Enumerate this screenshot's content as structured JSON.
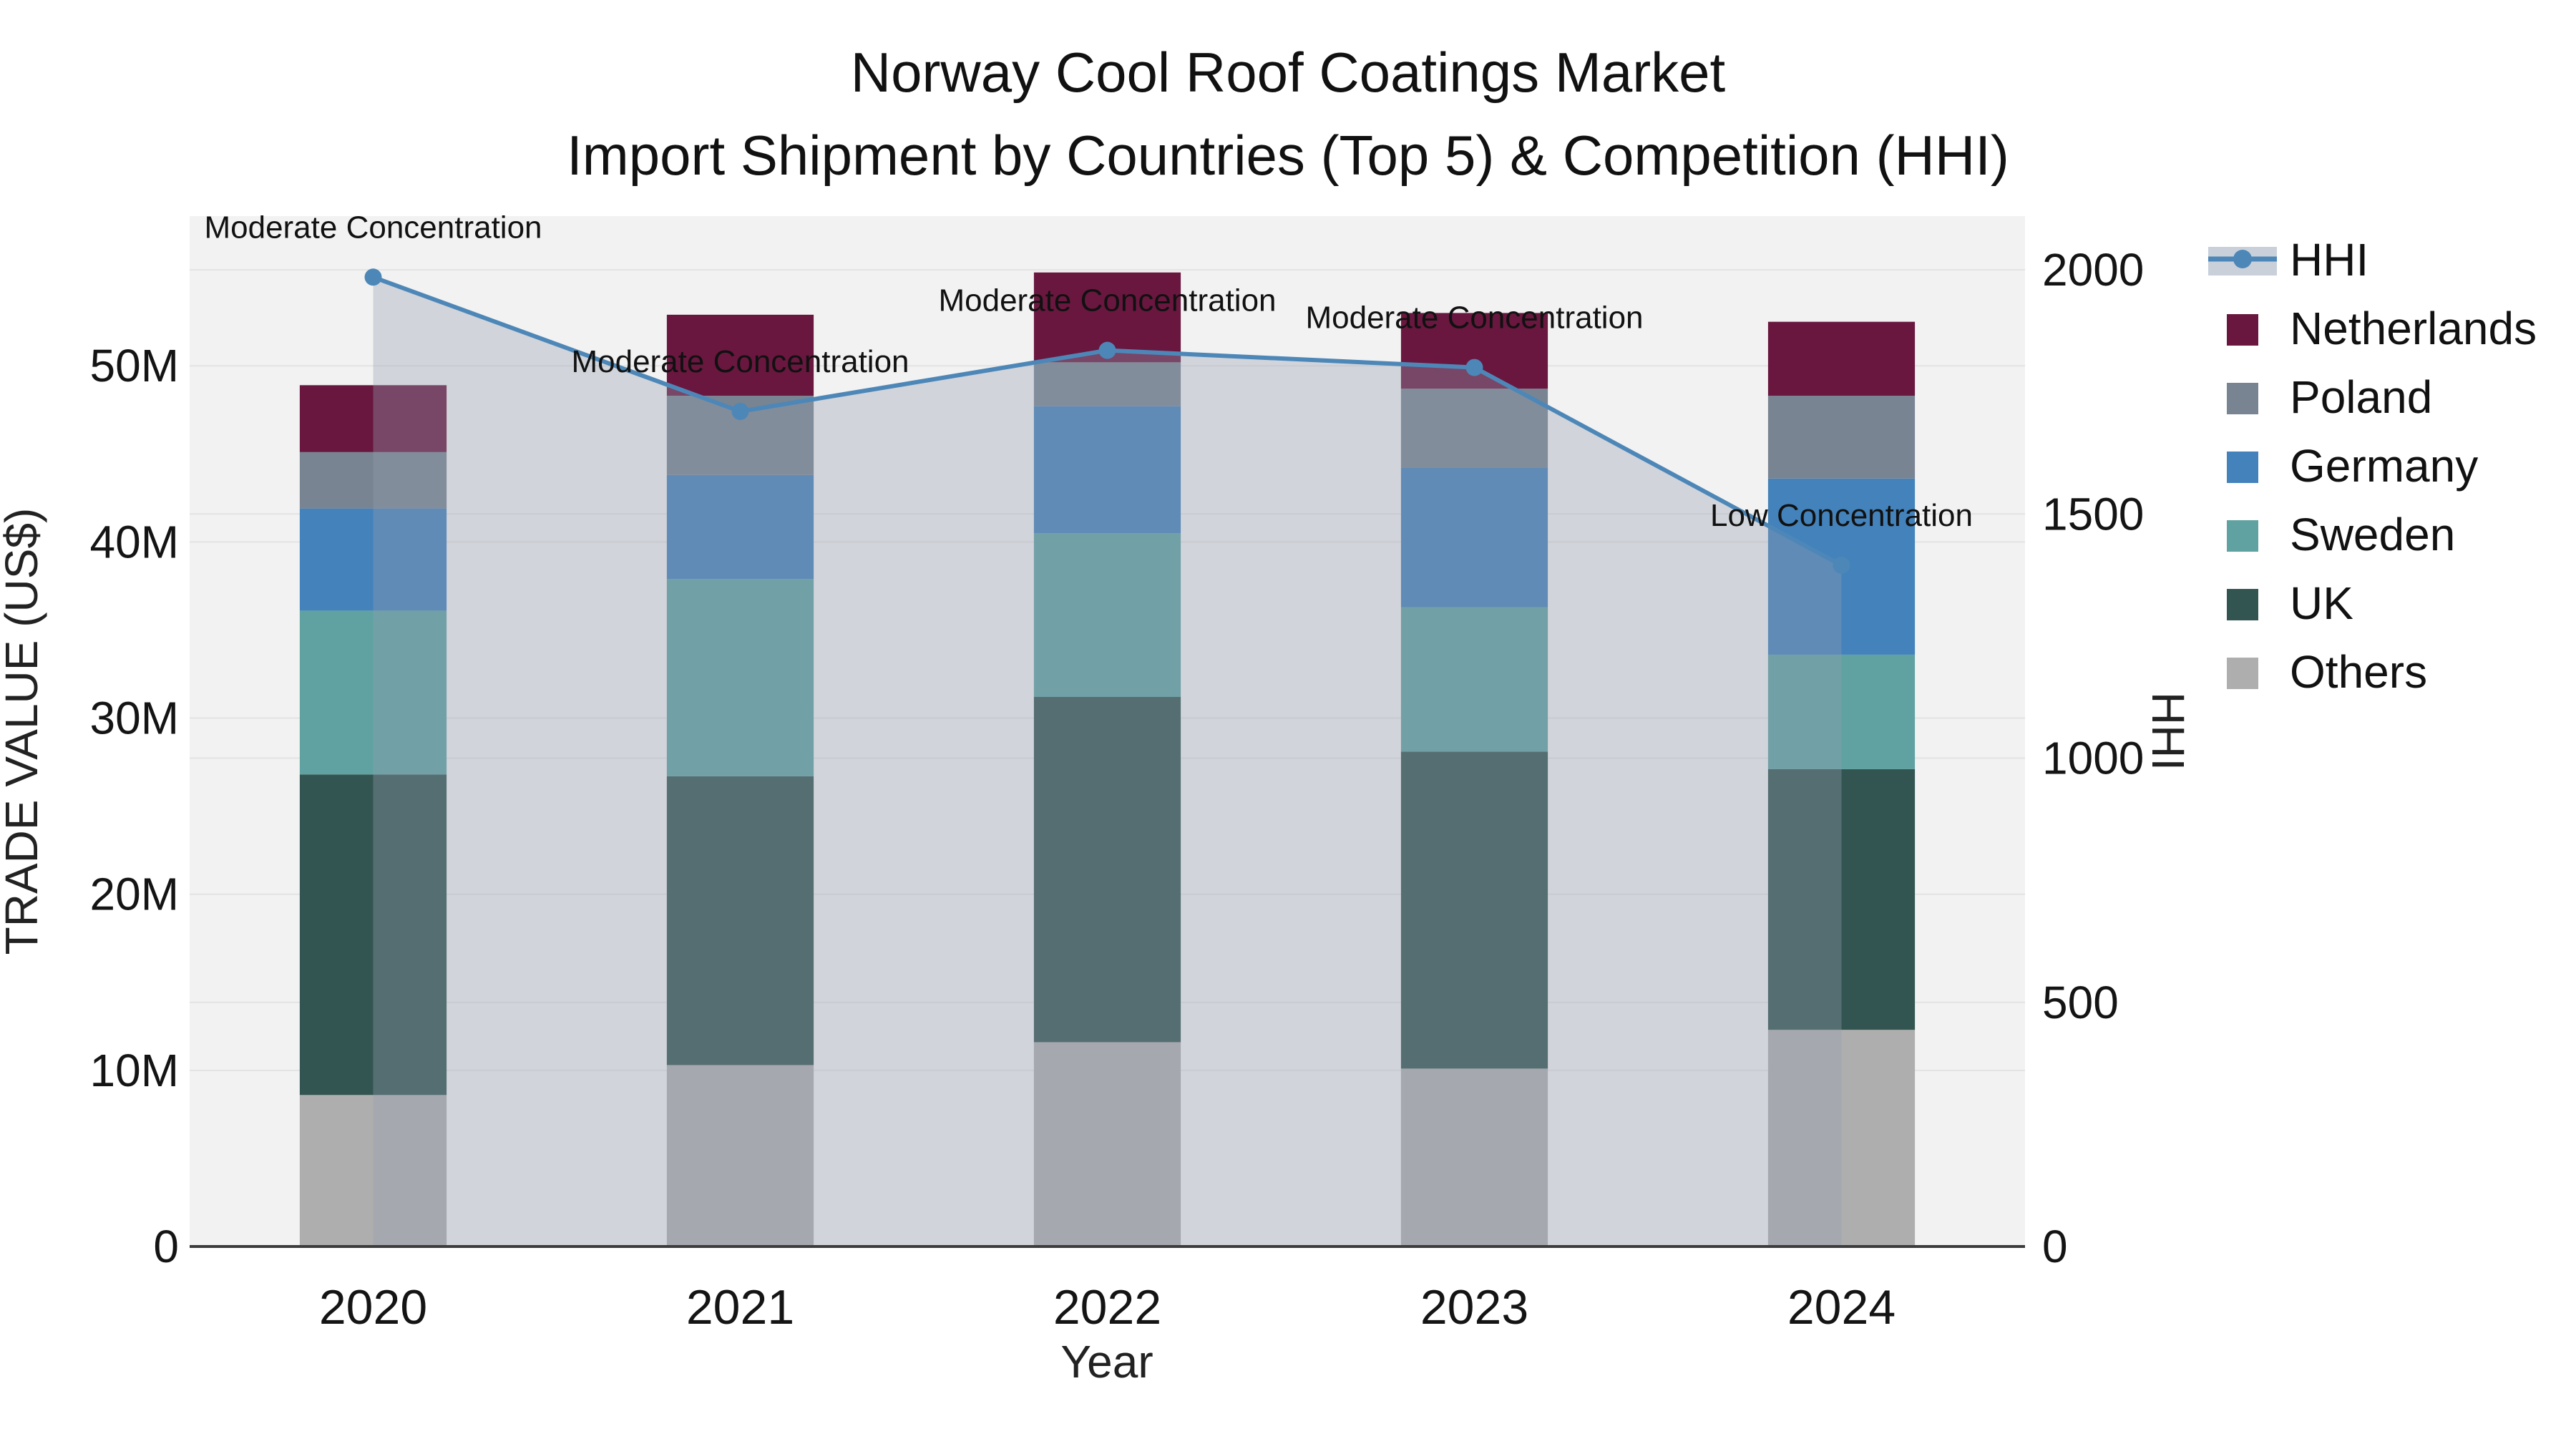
{
  "title": {
    "line1": "Norway Cool Roof Coatings Market",
    "line2": "Import Shipment by Countries (Top 5) & Competition (HHI)"
  },
  "colors": {
    "background": "#ffffff",
    "plot_background": "#f2f2f2",
    "grid": "#e3e3e3",
    "axis_line": "#3c3c3c",
    "hhi_line": "#4d87b8",
    "hhi_fill": "rgba(150,158,176,0.35)",
    "legend_band": "#c9d0da",
    "text": "#111111"
  },
  "chart_data": {
    "type": "bar",
    "subtype": "stacked-bars-with-line",
    "categories": [
      "2020",
      "2021",
      "2022",
      "2023",
      "2024"
    ],
    "stack_order": "bottom_to_top",
    "bar_width_frac": 0.4,
    "value_unit": "millions US$",
    "series": [
      {
        "name": "Others",
        "color": "#aeaeae",
        "values": [
          8.6,
          10.3,
          11.6,
          10.1,
          12.3
        ]
      },
      {
        "name": "UK",
        "color": "#335551",
        "values": [
          18.2,
          16.4,
          19.6,
          18.0,
          14.8
        ]
      },
      {
        "name": "Sweden",
        "color": "#5fa2a1",
        "values": [
          9.3,
          11.2,
          9.3,
          8.2,
          6.5
        ]
      },
      {
        "name": "Germany",
        "color": "#4382ba",
        "values": [
          5.8,
          5.9,
          7.2,
          7.9,
          10.0
        ]
      },
      {
        "name": "Poland",
        "color": "#788492",
        "values": [
          3.2,
          4.5,
          2.5,
          4.5,
          4.7
        ]
      },
      {
        "name": "Netherlands",
        "color": "#69173f",
        "values": [
          3.8,
          4.6,
          5.1,
          4.3,
          4.2
        ]
      }
    ],
    "line_series": {
      "name": "HHI",
      "axis": "right",
      "values": [
        1985,
        1710,
        1835,
        1800,
        1395
      ]
    },
    "annotations": [
      {
        "category": "2020",
        "text": "Moderate Concentration"
      },
      {
        "category": "2021",
        "text": "Moderate Concentration"
      },
      {
        "category": "2022",
        "text": "Moderate Concentration"
      },
      {
        "category": "2023",
        "text": "Moderate Concentration"
      },
      {
        "category": "2024",
        "text": "Low Concentration"
      }
    ],
    "left_axis": {
      "title": "TRADE VALUE (US$)",
      "range": [
        0,
        58.5
      ],
      "ticks": [
        {
          "v": 0,
          "label": "0"
        },
        {
          "v": 10,
          "label": "10M"
        },
        {
          "v": 20,
          "label": "20M"
        },
        {
          "v": 30,
          "label": "30M"
        },
        {
          "v": 40,
          "label": "40M"
        },
        {
          "v": 50,
          "label": "50M"
        }
      ]
    },
    "right_axis": {
      "title": "HHI",
      "range": [
        0,
        2110
      ],
      "ticks": [
        {
          "v": 0,
          "label": "0"
        },
        {
          "v": 500,
          "label": "500"
        },
        {
          "v": 1000,
          "label": "1000"
        },
        {
          "v": 1500,
          "label": "1500"
        },
        {
          "v": 2000,
          "label": "2000"
        }
      ]
    },
    "x_axis": {
      "title": "Year"
    }
  },
  "legend": {
    "items": [
      {
        "label": "HHI",
        "type": "line",
        "color": "#4d87b8"
      },
      {
        "label": "Netherlands",
        "type": "swatch",
        "color": "#69173f"
      },
      {
        "label": "Poland",
        "type": "swatch",
        "color": "#788492"
      },
      {
        "label": "Germany",
        "type": "swatch",
        "color": "#4382ba"
      },
      {
        "label": "Sweden",
        "type": "swatch",
        "color": "#5fa2a1"
      },
      {
        "label": "UK",
        "type": "swatch",
        "color": "#335551"
      },
      {
        "label": "Others",
        "type": "swatch",
        "color": "#aeaeae"
      }
    ]
  }
}
